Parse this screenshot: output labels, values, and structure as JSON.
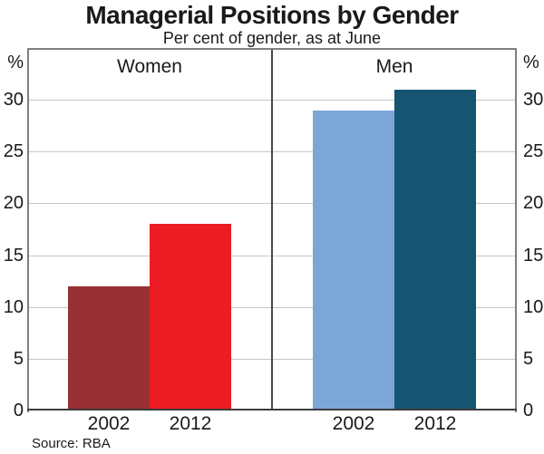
{
  "chart_data": {
    "type": "bar",
    "title": "Managerial Positions by Gender",
    "subtitle": "Per cent of gender, as at June",
    "unit_label": "%",
    "ylim": [
      0,
      35
    ],
    "yticks": [
      0,
      5,
      10,
      15,
      20,
      25,
      30
    ],
    "grid": true,
    "legend_position": "none",
    "panels": [
      {
        "label": "Women",
        "categories": [
          "2002",
          "2012"
        ],
        "values": [
          12,
          18
        ],
        "colors": [
          "#993033",
          "#ed1c24"
        ]
      },
      {
        "label": "Men",
        "categories": [
          "2002",
          "2012"
        ],
        "values": [
          29,
          31
        ],
        "colors": [
          "#7ca6d8",
          "#155571"
        ]
      }
    ],
    "source": "Source: RBA",
    "gridline_color": "#c8c8c8",
    "axis_color": "#7f7f7f",
    "text_color": "#1a1a1a"
  }
}
